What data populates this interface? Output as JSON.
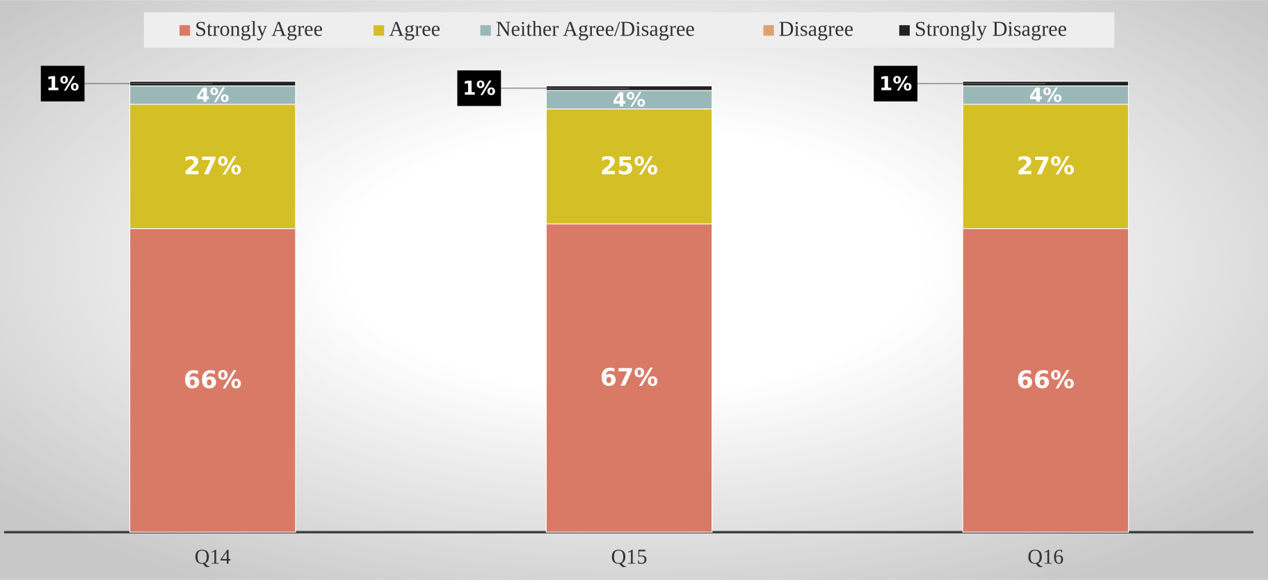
{
  "chart_data": {
    "type": "stacked_bar",
    "categories": [
      "Q14",
      "Q15",
      "Q16"
    ],
    "series": [
      {
        "name": "Strongly Agree",
        "color": "#d97a66",
        "values": [
          66,
          67,
          66
        ],
        "value_labels": [
          "66%",
          "67%",
          "66%"
        ]
      },
      {
        "name": "Agree",
        "color": "#d4bf26",
        "values": [
          27,
          25,
          27
        ],
        "value_labels": [
          "27%",
          "25%",
          "27%"
        ]
      },
      {
        "name": "Neither Agree/Disagree",
        "color": "#9ab8b8",
        "values": [
          4,
          4,
          4
        ],
        "value_labels": [
          "4%",
          "4%",
          "4%"
        ]
      },
      {
        "name": "Disagree",
        "color": "#e0a070",
        "values": [
          0,
          0,
          0
        ]
      },
      {
        "name": "Strongly Disagree",
        "color": "#222222",
        "values": [
          1,
          1,
          1
        ],
        "value_labels": [
          "1%",
          "1%",
          "1%"
        ]
      }
    ],
    "ylim": [
      0,
      100
    ],
    "legend": "top"
  }
}
